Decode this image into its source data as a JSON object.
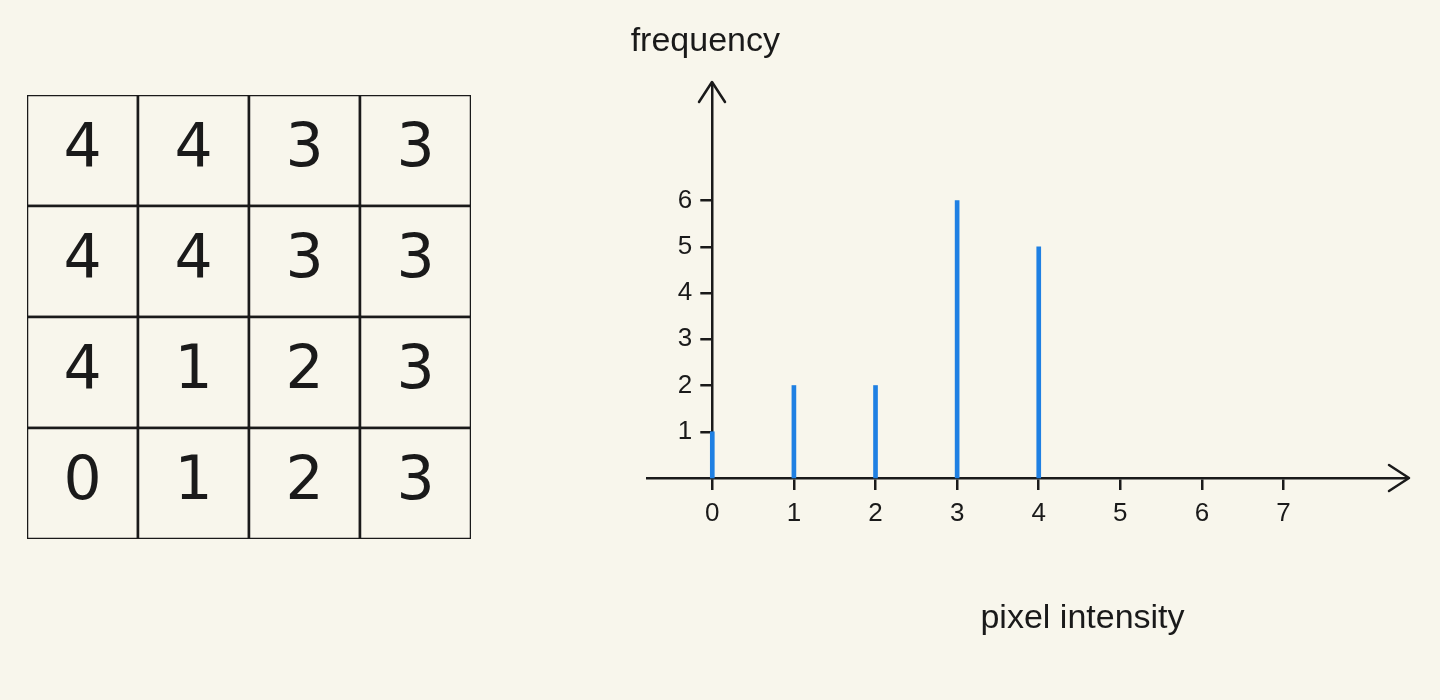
{
  "chart_data": [
    {
      "type": "heatmap",
      "categories": [
        null,
        null,
        null,
        null
      ],
      "y_categories": [
        null,
        null,
        null,
        null
      ],
      "cells": [
        [
          4,
          4,
          3,
          3
        ],
        [
          4,
          4,
          3,
          3
        ],
        [
          4,
          1,
          2,
          3
        ],
        [
          0,
          1,
          2,
          3
        ]
      ],
      "data_labels": true
    },
    {
      "type": "bar",
      "x": [
        0,
        1,
        2,
        3,
        4
      ],
      "values": [
        1,
        2,
        2,
        6,
        5
      ],
      "color": "#1f80e3",
      "xlabel": "pixel intensity",
      "ylabel": "frequency",
      "xlim": [
        -0.8,
        8.5
      ],
      "ylim": [
        0,
        8.5
      ],
      "xticks": [
        0,
        1,
        2,
        3,
        4,
        5,
        6,
        7
      ],
      "yticks": [
        1,
        2,
        3,
        4,
        5,
        6
      ]
    }
  ]
}
